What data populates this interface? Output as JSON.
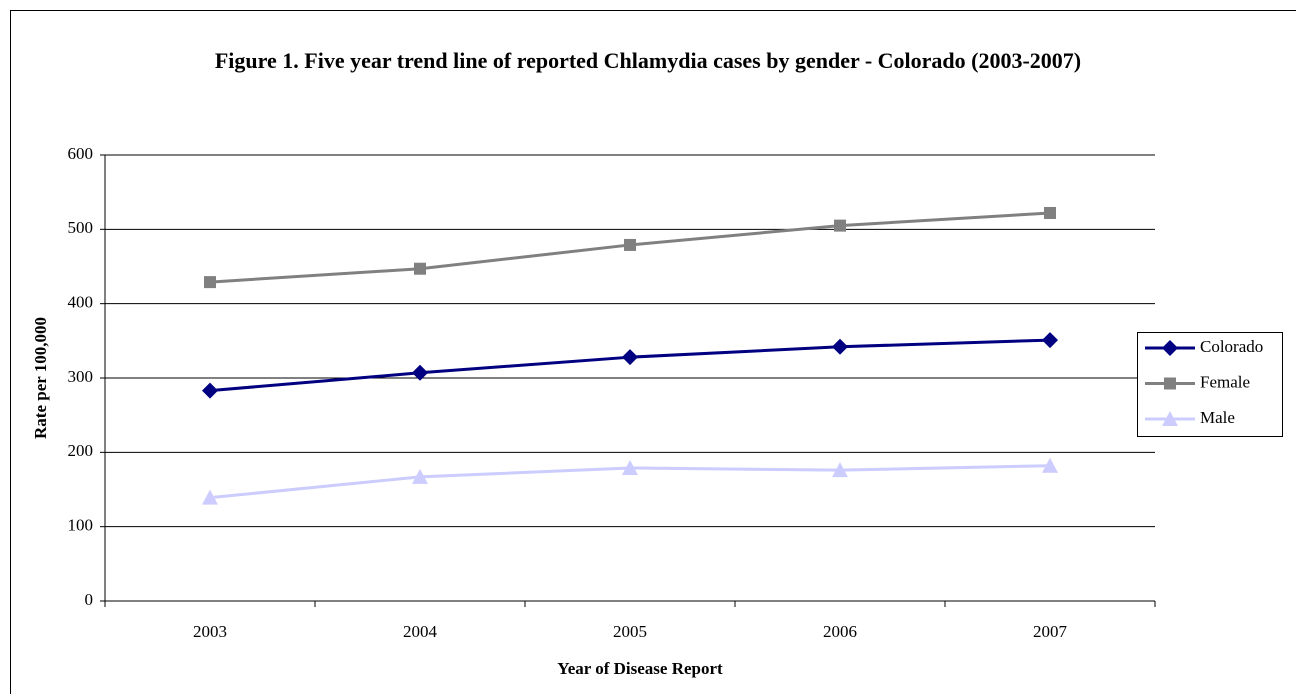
{
  "chart_data": {
    "type": "line",
    "title": "Figure 1.  Five year trend line of reported Chlamydia cases  by gender - Colorado (2003-2007)",
    "x_label": "Year of Disease Report",
    "y_label": "Rate per 100,000",
    "categories": [
      "2003",
      "2004",
      "2005",
      "2006",
      "2007"
    ],
    "series": [
      {
        "name": "Colorado",
        "color": "#000080",
        "marker": "diamond",
        "values": [
          283,
          307,
          328,
          342,
          351
        ]
      },
      {
        "name": "Female",
        "color": "#808080",
        "marker": "square",
        "values": [
          429,
          447,
          479,
          505,
          522
        ]
      },
      {
        "name": "Male",
        "color": "#ccccff",
        "marker": "triangle",
        "values": [
          139,
          167,
          179,
          176,
          182
        ]
      }
    ],
    "ylim": [
      0,
      600
    ],
    "yticks": [
      0,
      100,
      200,
      300,
      400,
      500,
      600
    ],
    "grid": true,
    "legend": "right"
  }
}
